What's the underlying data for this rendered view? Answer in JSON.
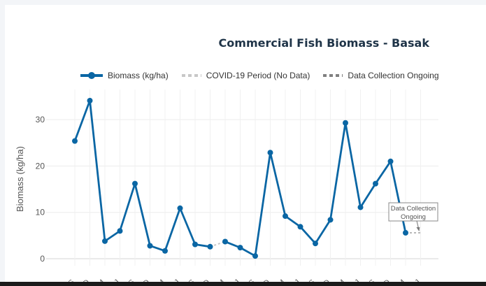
{
  "chart_data": {
    "type": "line",
    "title": "Commercial Fish Biomass - Basak",
    "ylabel": "Biomass (kg/ha)",
    "xlabel": "",
    "ylim": [
      -1.5,
      36.5
    ],
    "yticks": [
      0,
      10,
      20,
      30
    ],
    "grid": true,
    "legend_placement": "top-center",
    "categories": [
      "S",
      "D",
      "M",
      "J",
      "S",
      "D",
      "M",
      "J",
      "S",
      "D",
      "M",
      "J",
      "S",
      "D",
      "M",
      "J",
      "S",
      "D",
      "M",
      "J",
      "S",
      "D",
      "M",
      "J"
    ],
    "series": [
      {
        "name": "Biomass (kg/ha)",
        "color": "#0a66a4",
        "segments": [
          {
            "x": [
              0,
              1,
              2,
              3,
              4,
              5,
              6,
              7,
              8,
              9
            ],
            "y": [
              25.4,
              34.1,
              3.8,
              6.0,
              16.2,
              2.8,
              1.7,
              10.9,
              3.1,
              2.6
            ]
          },
          {
            "x": [
              10,
              11,
              12,
              13,
              14,
              15,
              16,
              17,
              18,
              19,
              20,
              21,
              22
            ],
            "y": [
              3.7,
              2.4,
              0.6,
              22.9,
              9.2,
              6.9,
              3.3,
              8.4,
              29.3,
              11.1,
              16.2,
              21.0,
              5.6
            ]
          }
        ]
      },
      {
        "name": "COVID-19 Period (No Data)",
        "color": "#c8c8c8",
        "x": [
          9,
          10
        ],
        "y": [
          2.6,
          3.7
        ]
      },
      {
        "name": "Data Collection Ongoing",
        "color": "#808080",
        "x": [
          22,
          23
        ],
        "y": [
          5.6,
          5.6
        ]
      }
    ],
    "annotation": {
      "text_line1": "Data Collection",
      "text_line2": "Ongoing",
      "x": 22.9,
      "y": 5.6
    }
  }
}
